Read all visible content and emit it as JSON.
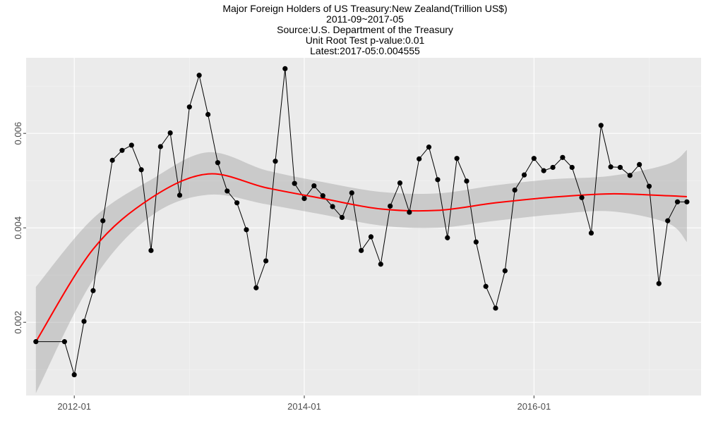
{
  "chart_data": {
    "type": "line",
    "title_lines": [
      "Major Foreign Holders of US Treasury:New Zealand(Trillion US$)",
      "2011-09~2017-05",
      "Source:U.S. Department of the Treasury",
      "Unit Root Test p-value:0.01",
      "Latest:2017-05:0.004555"
    ],
    "xlabel": "",
    "ylabel": "",
    "x_ticks": [
      "2012-01",
      "2014-01",
      "2016-01"
    ],
    "y_ticks": [
      "0.002",
      "0.004",
      "0.006"
    ],
    "xlim": [
      "2011-08-01",
      "2017-06-15"
    ],
    "ylim": [
      0.00045,
      0.0076
    ],
    "grid": true,
    "series": [
      {
        "color": "#000000",
        "x": [
          "2011-09",
          "2011-12",
          "2012-01",
          "2012-02",
          "2012-03",
          "2012-04",
          "2012-05",
          "2012-06",
          "2012-07",
          "2012-08",
          "2012-09",
          "2012-10",
          "2012-11",
          "2012-12",
          "2013-01",
          "2013-02",
          "2013-03",
          "2013-04",
          "2013-05",
          "2013-06",
          "2013-07",
          "2013-08",
          "2013-09",
          "2013-10",
          "2013-11",
          "2013-12",
          "2014-01",
          "2014-02",
          "2014-03",
          "2014-04",
          "2014-05",
          "2014-06",
          "2014-07",
          "2014-08",
          "2014-09",
          "2014-10",
          "2014-11",
          "2014-12",
          "2015-01",
          "2015-02",
          "2015-03",
          "2015-04",
          "2015-05",
          "2015-06",
          "2015-07",
          "2015-08",
          "2015-09",
          "2015-10",
          "2015-11",
          "2015-12",
          "2016-01",
          "2016-02",
          "2016-03",
          "2016-04",
          "2016-05",
          "2016-06",
          "2016-07",
          "2016-08",
          "2016-09",
          "2016-10",
          "2016-11",
          "2016-12",
          "2017-01",
          "2017-02",
          "2017-03",
          "2017-04",
          "2017-05"
        ],
        "values": [
          0.00159,
          0.00159,
          0.00089,
          0.00202,
          0.00267,
          0.00415,
          0.00543,
          0.00564,
          0.00575,
          0.00523,
          0.00352,
          0.00572,
          0.00601,
          0.00469,
          0.00656,
          0.00723,
          0.0064,
          0.00538,
          0.00478,
          0.00453,
          0.00396,
          0.00273,
          0.0033,
          0.00541,
          0.00737,
          0.00494,
          0.00462,
          0.00489,
          0.00468,
          0.00445,
          0.00422,
          0.00474,
          0.00352,
          0.00381,
          0.00323,
          0.00446,
          0.00495,
          0.00433,
          0.00546,
          0.00571,
          0.00502,
          0.00379,
          0.00547,
          0.00499,
          0.0037,
          0.00276,
          0.0023,
          0.00309,
          0.0048,
          0.00512,
          0.00547,
          0.00521,
          0.00528,
          0.00549,
          0.00528,
          0.00464,
          0.00389,
          0.00617,
          0.00529,
          0.00528,
          0.00511,
          0.00534,
          0.00488,
          0.00282,
          0.00415,
          0.00455,
          0.00455
        ]
      },
      {
        "color": "#ff0000",
        "x": [
          "2011-09",
          "2012-03",
          "2012-09",
          "2013-03",
          "2013-09",
          "2014-03",
          "2014-09",
          "2015-03",
          "2015-09",
          "2016-03",
          "2016-09",
          "2017-03",
          "2017-05"
        ],
        "values": [
          0.00159,
          0.00355,
          0.00463,
          0.00514,
          0.00485,
          0.00462,
          0.0044,
          0.00437,
          0.00453,
          0.00465,
          0.00472,
          0.00468,
          0.00466
        ],
        "band_lower": [
          0.0005,
          0.0029,
          0.00425,
          0.0047,
          0.0045,
          0.00428,
          0.00405,
          0.004,
          0.00415,
          0.00428,
          0.00435,
          0.0041,
          0.0037
        ],
        "band_upper": [
          0.00275,
          0.0042,
          0.00502,
          0.0056,
          0.00522,
          0.00497,
          0.00476,
          0.00473,
          0.0049,
          0.00503,
          0.0051,
          0.00535,
          0.00565
        ]
      }
    ]
  }
}
